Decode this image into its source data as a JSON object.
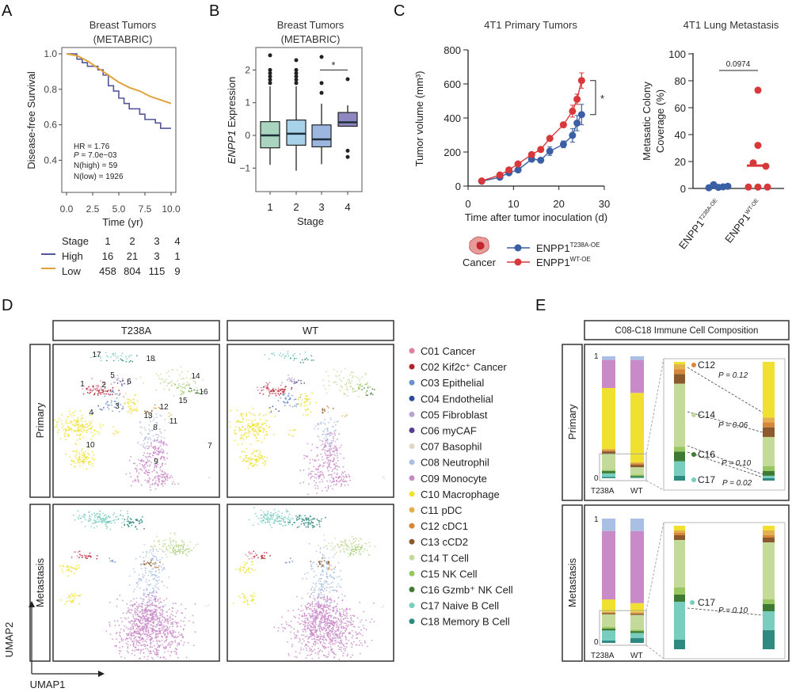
{
  "panels": {
    "a": "A",
    "b": "B",
    "c": "C",
    "d": "D",
    "e": "E"
  },
  "colors": {
    "km_high": "#54559b",
    "km_low": "#e0a23a",
    "t238a": "#3a5fa5",
    "wt": "#d8383a"
  },
  "chart_data": [
    {
      "id": "A",
      "type": "line",
      "title": "Breast Tumors\n(METABRIC)",
      "title_lines": [
        "Breast Tumors",
        "(METABRIC)"
      ],
      "xlabel": "Time (yr)",
      "ylabel": "Disease-free Survival",
      "xlim": [
        0,
        10
      ],
      "ylim": [
        0.22,
        1.03
      ],
      "xticks": [
        "0.0",
        "2.5",
        "5.0",
        "7.5",
        "10.0"
      ],
      "yticks": [
        "0.4",
        "0.6",
        "0.8",
        "1.0"
      ],
      "series": [
        {
          "name": "High",
          "color": "#54559b",
          "x": [
            0,
            0.5,
            1,
            1.5,
            2,
            3,
            3.5,
            4,
            4.5,
            5,
            5.5,
            6,
            7,
            7.5,
            8,
            8.5,
            9,
            10
          ],
          "y": [
            1,
            1,
            0.97,
            0.95,
            0.93,
            0.91,
            0.88,
            0.82,
            0.79,
            0.75,
            0.72,
            0.69,
            0.66,
            0.63,
            0.63,
            0.61,
            0.58,
            0.58
          ]
        },
        {
          "name": "Low",
          "color": "#e0a23a",
          "x": [
            0,
            1,
            2,
            3,
            4,
            5,
            6,
            7,
            8,
            9,
            10
          ],
          "y": [
            1,
            0.99,
            0.96,
            0.92,
            0.88,
            0.84,
            0.81,
            0.79,
            0.76,
            0.74,
            0.72
          ]
        }
      ],
      "stats": {
        "hr": "HR = 1.76",
        "p_label": "P",
        "p_value": " = 7.0e−03",
        "n_high": "N(high) = 59",
        "n_low": "N(low) = 1926"
      },
      "risk_table": {
        "header": "Stage",
        "stages": [
          "1",
          "2",
          "3",
          "4"
        ],
        "rows": [
          {
            "name": "High",
            "values": [
              "16",
              "21",
              "3",
              "1"
            ]
          },
          {
            "name": "Low",
            "values": [
              "458",
              "804",
              "115",
              "9"
            ]
          }
        ]
      }
    },
    {
      "id": "B",
      "type": "box",
      "title_lines": [
        "Breast Tumors",
        "(METABRIC)"
      ],
      "xlabel": "Stage",
      "ylabel_italic": "ENPP1",
      "ylabel": " Expression",
      "categories": [
        "1",
        "2",
        "3",
        "4"
      ],
      "ylim": [
        -1.7,
        2.6
      ],
      "yticks": [
        "−1",
        "0",
        "1",
        "2"
      ],
      "boxes": [
        {
          "q1": -0.38,
          "median": 0,
          "q3": 0.42,
          "low": -0.9,
          "high": 1.5,
          "outliers": [
            1.6,
            1.7,
            1.8,
            1.9,
            2.0,
            2.45
          ],
          "color": "#a9d4c0"
        },
        {
          "q1": -0.3,
          "median": 0.05,
          "q3": 0.47,
          "low": -1.08,
          "high": 1.5,
          "outliers": [
            1.6,
            1.7,
            1.8,
            1.9,
            2.0,
            2.3
          ],
          "color": "#a8d2ea"
        },
        {
          "q1": -0.35,
          "median": -0.12,
          "q3": 0.32,
          "low": -0.88,
          "high": 0.97,
          "outliers": [
            1.3,
            1.6,
            2.4
          ],
          "color": "#9db6e0"
        },
        {
          "q1": 0.28,
          "median": 0.4,
          "q3": 0.7,
          "low": 0.28,
          "high": 0.92,
          "outliers": [
            1.72,
            -0.47,
            -0.66
          ],
          "color": "#8f87bf"
        }
      ],
      "significance": "*"
    },
    {
      "id": "C-left",
      "type": "line",
      "title": "4T1 Primary Tumors",
      "xlabel": "Time after tumor inoculation (d)",
      "ylabel": "Tumor volume (mm³)",
      "xlim": [
        0,
        30
      ],
      "ylim": [
        0,
        800
      ],
      "xticks": [
        "0",
        "10",
        "20",
        "30"
      ],
      "yticks": [
        "0",
        "200",
        "400",
        "600",
        "800"
      ],
      "series": [
        {
          "name": "ENPP1",
          "sup": "T238A-OE",
          "color": "#3a5fa5",
          "x": [
            3,
            7,
            9,
            11,
            14,
            16,
            18,
            21,
            23,
            24,
            25
          ],
          "y": [
            28,
            52,
            78,
            95,
            158,
            152,
            205,
            245,
            298,
            370,
            420
          ],
          "err": [
            5,
            6,
            8,
            8,
            10,
            10,
            25,
            20,
            40,
            45,
            60
          ]
        },
        {
          "name": "ENPP1",
          "sup": "WT-OE",
          "color": "#d8383a",
          "x": [
            3,
            7,
            9,
            11,
            14,
            16,
            18,
            21,
            23,
            24,
            25
          ],
          "y": [
            30,
            65,
            95,
            130,
            185,
            215,
            280,
            360,
            440,
            510,
            620
          ],
          "err": [
            5,
            8,
            8,
            10,
            10,
            10,
            12,
            12,
            35,
            30,
            45
          ]
        }
      ],
      "significance": "*",
      "cancer_label": "Cancer"
    },
    {
      "id": "C-right",
      "type": "scatter",
      "title": "4T1 Lung Metastasis",
      "ylabel_lines": [
        "Metasatic Colony",
        "Coverage (%)"
      ],
      "ylim": [
        0,
        100
      ],
      "yticks": [
        "0",
        "20",
        "40",
        "60",
        "80",
        "100"
      ],
      "categories": [
        {
          "name": "ENPP1",
          "sup": "T238A-OE"
        },
        {
          "name": "ENPP1",
          "sup": "WT-OE"
        }
      ],
      "groups": [
        {
          "values": [
            0.5,
            2.8,
            0.8,
            1.2,
            1.6
          ],
          "median": 1.2,
          "color": "#3a5fa5"
        },
        {
          "values": [
            73,
            32,
            19,
            16.5,
            1,
            1,
            1
          ],
          "median": 17,
          "color": "#d8383a"
        }
      ],
      "p_value": "0.0974"
    },
    {
      "id": "E",
      "type": "bar",
      "title": "C08-C18 Immune Cell Composition",
      "rows": [
        "Primary",
        "Metastasis"
      ],
      "categories": [
        "T238A",
        "WT"
      ],
      "yticks": [
        "0",
        "1"
      ],
      "clusters": [
        "C08",
        "C09",
        "C10",
        "C11",
        "C12",
        "C13",
        "C14",
        "C15",
        "C16",
        "C17",
        "C18"
      ],
      "primary": {
        "T238A": [
          0.03,
          0.23,
          0.5,
          0.01,
          0.01,
          0.02,
          0.13,
          0.01,
          0.02,
          0.03,
          0.01
        ],
        "WT": [
          0.03,
          0.27,
          0.57,
          0.01,
          0.01,
          0.02,
          0.06,
          0.01,
          0.01,
          0.005,
          0.005
        ]
      },
      "metastasis": {
        "T238A": [
          0.1,
          0.55,
          0.1,
          0.005,
          0.005,
          0.01,
          0.1,
          0.015,
          0.015,
          0.08,
          0.02
        ],
        "WT": [
          0.1,
          0.58,
          0.07,
          0.01,
          0.005,
          0.01,
          0.12,
          0.01,
          0.015,
          0.04,
          0.04
        ]
      },
      "annotations_primary": [
        {
          "cluster": "C12",
          "p": "P = 0.12"
        },
        {
          "cluster": "C14",
          "p": "P = 0.06"
        },
        {
          "cluster": "C16",
          "p": "P = 0.10"
        },
        {
          "cluster": "C17",
          "p": "P = 0.02"
        }
      ],
      "annotations_metastasis": [
        {
          "cluster": "C17",
          "p": "P = 0.10"
        }
      ]
    }
  ],
  "umap": {
    "columns": [
      "T238A",
      "WT"
    ],
    "rows": [
      "Primary",
      "Metastasis"
    ],
    "x_axis": "UMAP1",
    "y_axis": "UMAP2",
    "cluster_numbers": [
      "1",
      "2",
      "3",
      "4",
      "5",
      "6",
      "7",
      "8",
      "9",
      "10",
      "11",
      "12",
      "13",
      "14",
      "15",
      "16",
      "17",
      "18"
    ],
    "legend": [
      {
        "label": "C01 Cancer",
        "color": "#e07f9a"
      },
      {
        "label": "C02 Kif2c⁺ Cancer",
        "color": "#b3242e"
      },
      {
        "label": "C03 Epithelial",
        "color": "#6b8fd0"
      },
      {
        "label": "C04 Endothelial",
        "color": "#2e4a9a"
      },
      {
        "label": "C05 Fibroblast",
        "color": "#b9a3d0"
      },
      {
        "label": "C06 myCAF",
        "color": "#5a3e8e"
      },
      {
        "label": "C07 Basophil",
        "color": "#e3d7c3"
      },
      {
        "label": "C08 Neutrophil",
        "color": "#a9bfe3"
      },
      {
        "label": "C09 Monocyte",
        "color": "#c98ac8"
      },
      {
        "label": "C10 Macrophage",
        "color": "#f0e030"
      },
      {
        "label": "C11 pDC",
        "color": "#e2b04e"
      },
      {
        "label": "C12 cDC1",
        "color": "#d6873a"
      },
      {
        "label": "C13 cCD2",
        "color": "#8a5a2e"
      },
      {
        "label": "C14 T Cell",
        "color": "#c4da9a"
      },
      {
        "label": "C15 NK Cell",
        "color": "#98c660"
      },
      {
        "label": "C16 Gzmb⁺ NK Cell",
        "color": "#3e7a32"
      },
      {
        "label": "C17 Naive B Cell",
        "color": "#78cdbf"
      },
      {
        "label": "C18 Memory B Cell",
        "color": "#2e8a80"
      }
    ]
  }
}
